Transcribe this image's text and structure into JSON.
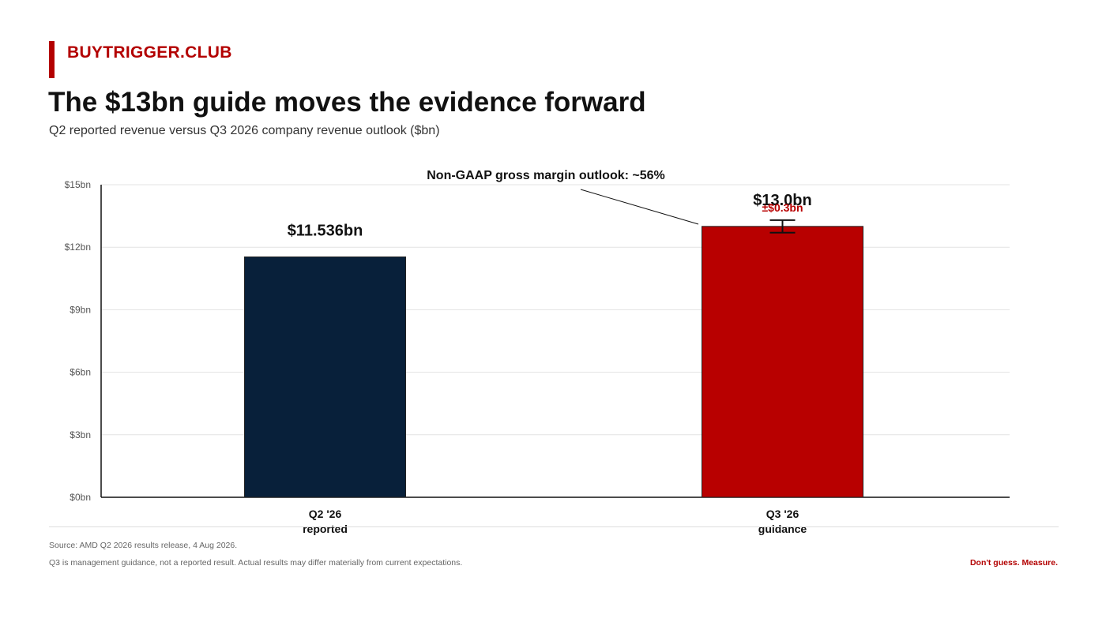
{
  "brand": "BUYTRIGGER.CLUB",
  "title": "The $13bn guide moves the evidence forward",
  "subtitle": "Q2 reported revenue versus Q3 2026 company revenue outlook ($bn)",
  "colors": {
    "brand_red": "#b30000",
    "bar_q2": "#08203a",
    "bar_q3": "#b80000",
    "grid": "#e3e3e3",
    "axis": "#111111",
    "tick_text": "#555555"
  },
  "chart_data": {
    "type": "bar",
    "categories": [
      [
        "Q2 '26",
        "reported"
      ],
      [
        "Q3 '26",
        "guidance"
      ]
    ],
    "values": [
      11.536,
      13.0
    ],
    "value_labels": [
      "$11.536bn",
      "$13.0bn"
    ],
    "error": {
      "index": 1,
      "plus_minus": 0.3,
      "label": "±$0.3bn"
    },
    "annotation": "Non-GAAP gross margin outlook: ~56%",
    "ylim": [
      0,
      15
    ],
    "yticks": [
      0,
      3,
      6,
      9,
      12,
      15
    ],
    "ytick_labels": [
      "$0bn",
      "$3bn",
      "$6bn",
      "$9bn",
      "$12bn",
      "$15bn"
    ],
    "grid": true,
    "xlabel": "",
    "ylabel": ""
  },
  "footer": {
    "source": "Source: AMD Q2 2026 results release, 4 Aug 2026.",
    "disclaimer": "Q3 is management guidance, not a reported result. Actual results may differ materially from current expectations.",
    "tagline": "Don't guess. Measure."
  }
}
